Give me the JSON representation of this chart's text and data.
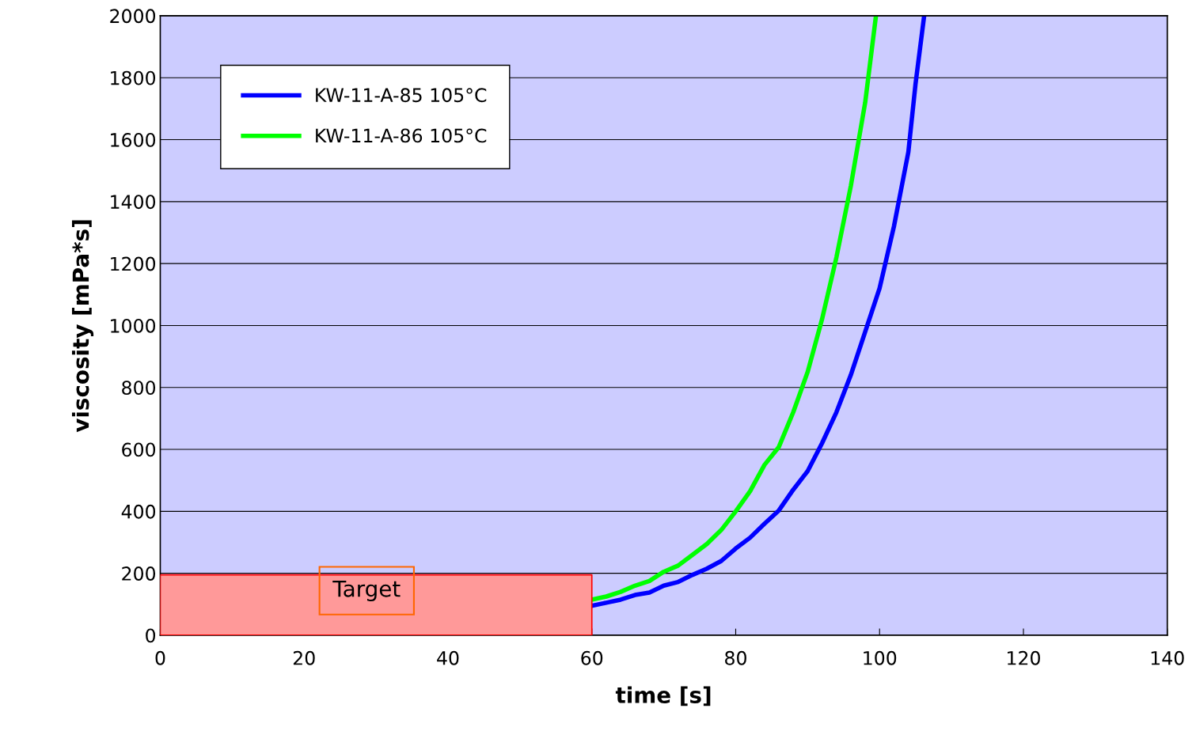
{
  "chart_data": {
    "type": "line",
    "xlabel": "time [s]",
    "ylabel": "viscosity [mPa*s]",
    "xlim": [
      0,
      140
    ],
    "xticks": [
      0,
      20,
      40,
      60,
      80,
      100,
      120,
      140
    ],
    "ylim": [
      0,
      2000
    ],
    "yticks": [
      0,
      200,
      400,
      600,
      800,
      1000,
      1200,
      1400,
      1600,
      1800,
      2000
    ],
    "grid": "y",
    "legend": "top left",
    "series": [
      {
        "type": "area",
        "color": "#ff9999",
        "x": [
          0,
          60
        ],
        "values": [
          195,
          195
        ]
      },
      {
        "name": "KW-11-A-85 105°C",
        "color": "#0000ff",
        "x": [
          60,
          62,
          64,
          66,
          68,
          70,
          72,
          74,
          76,
          78,
          80,
          82,
          84,
          86,
          88,
          90,
          92,
          94,
          96,
          98,
          100,
          102,
          104,
          105,
          106.2
        ],
        "values": [
          95,
          105,
          115,
          130,
          138,
          160,
          172,
          195,
          215,
          240,
          280,
          315,
          360,
          403,
          470,
          530,
          620,
          720,
          840,
          980,
          1120,
          1320,
          1560,
          1780,
          2000
        ]
      },
      {
        "name": "KW-11-A-86 105°C",
        "color": "#00ff00",
        "x": [
          60,
          62,
          64,
          66,
          68,
          70,
          72,
          74,
          76,
          78,
          80,
          82,
          84,
          86,
          88,
          90,
          92,
          94,
          96,
          98,
          99.5
        ],
        "values": [
          115,
          125,
          140,
          160,
          175,
          205,
          225,
          260,
          295,
          340,
          400,
          465,
          550,
          608,
          720,
          850,
          1020,
          1220,
          1450,
          1720,
          2000
        ]
      }
    ],
    "annotations": [
      "Target"
    ]
  }
}
